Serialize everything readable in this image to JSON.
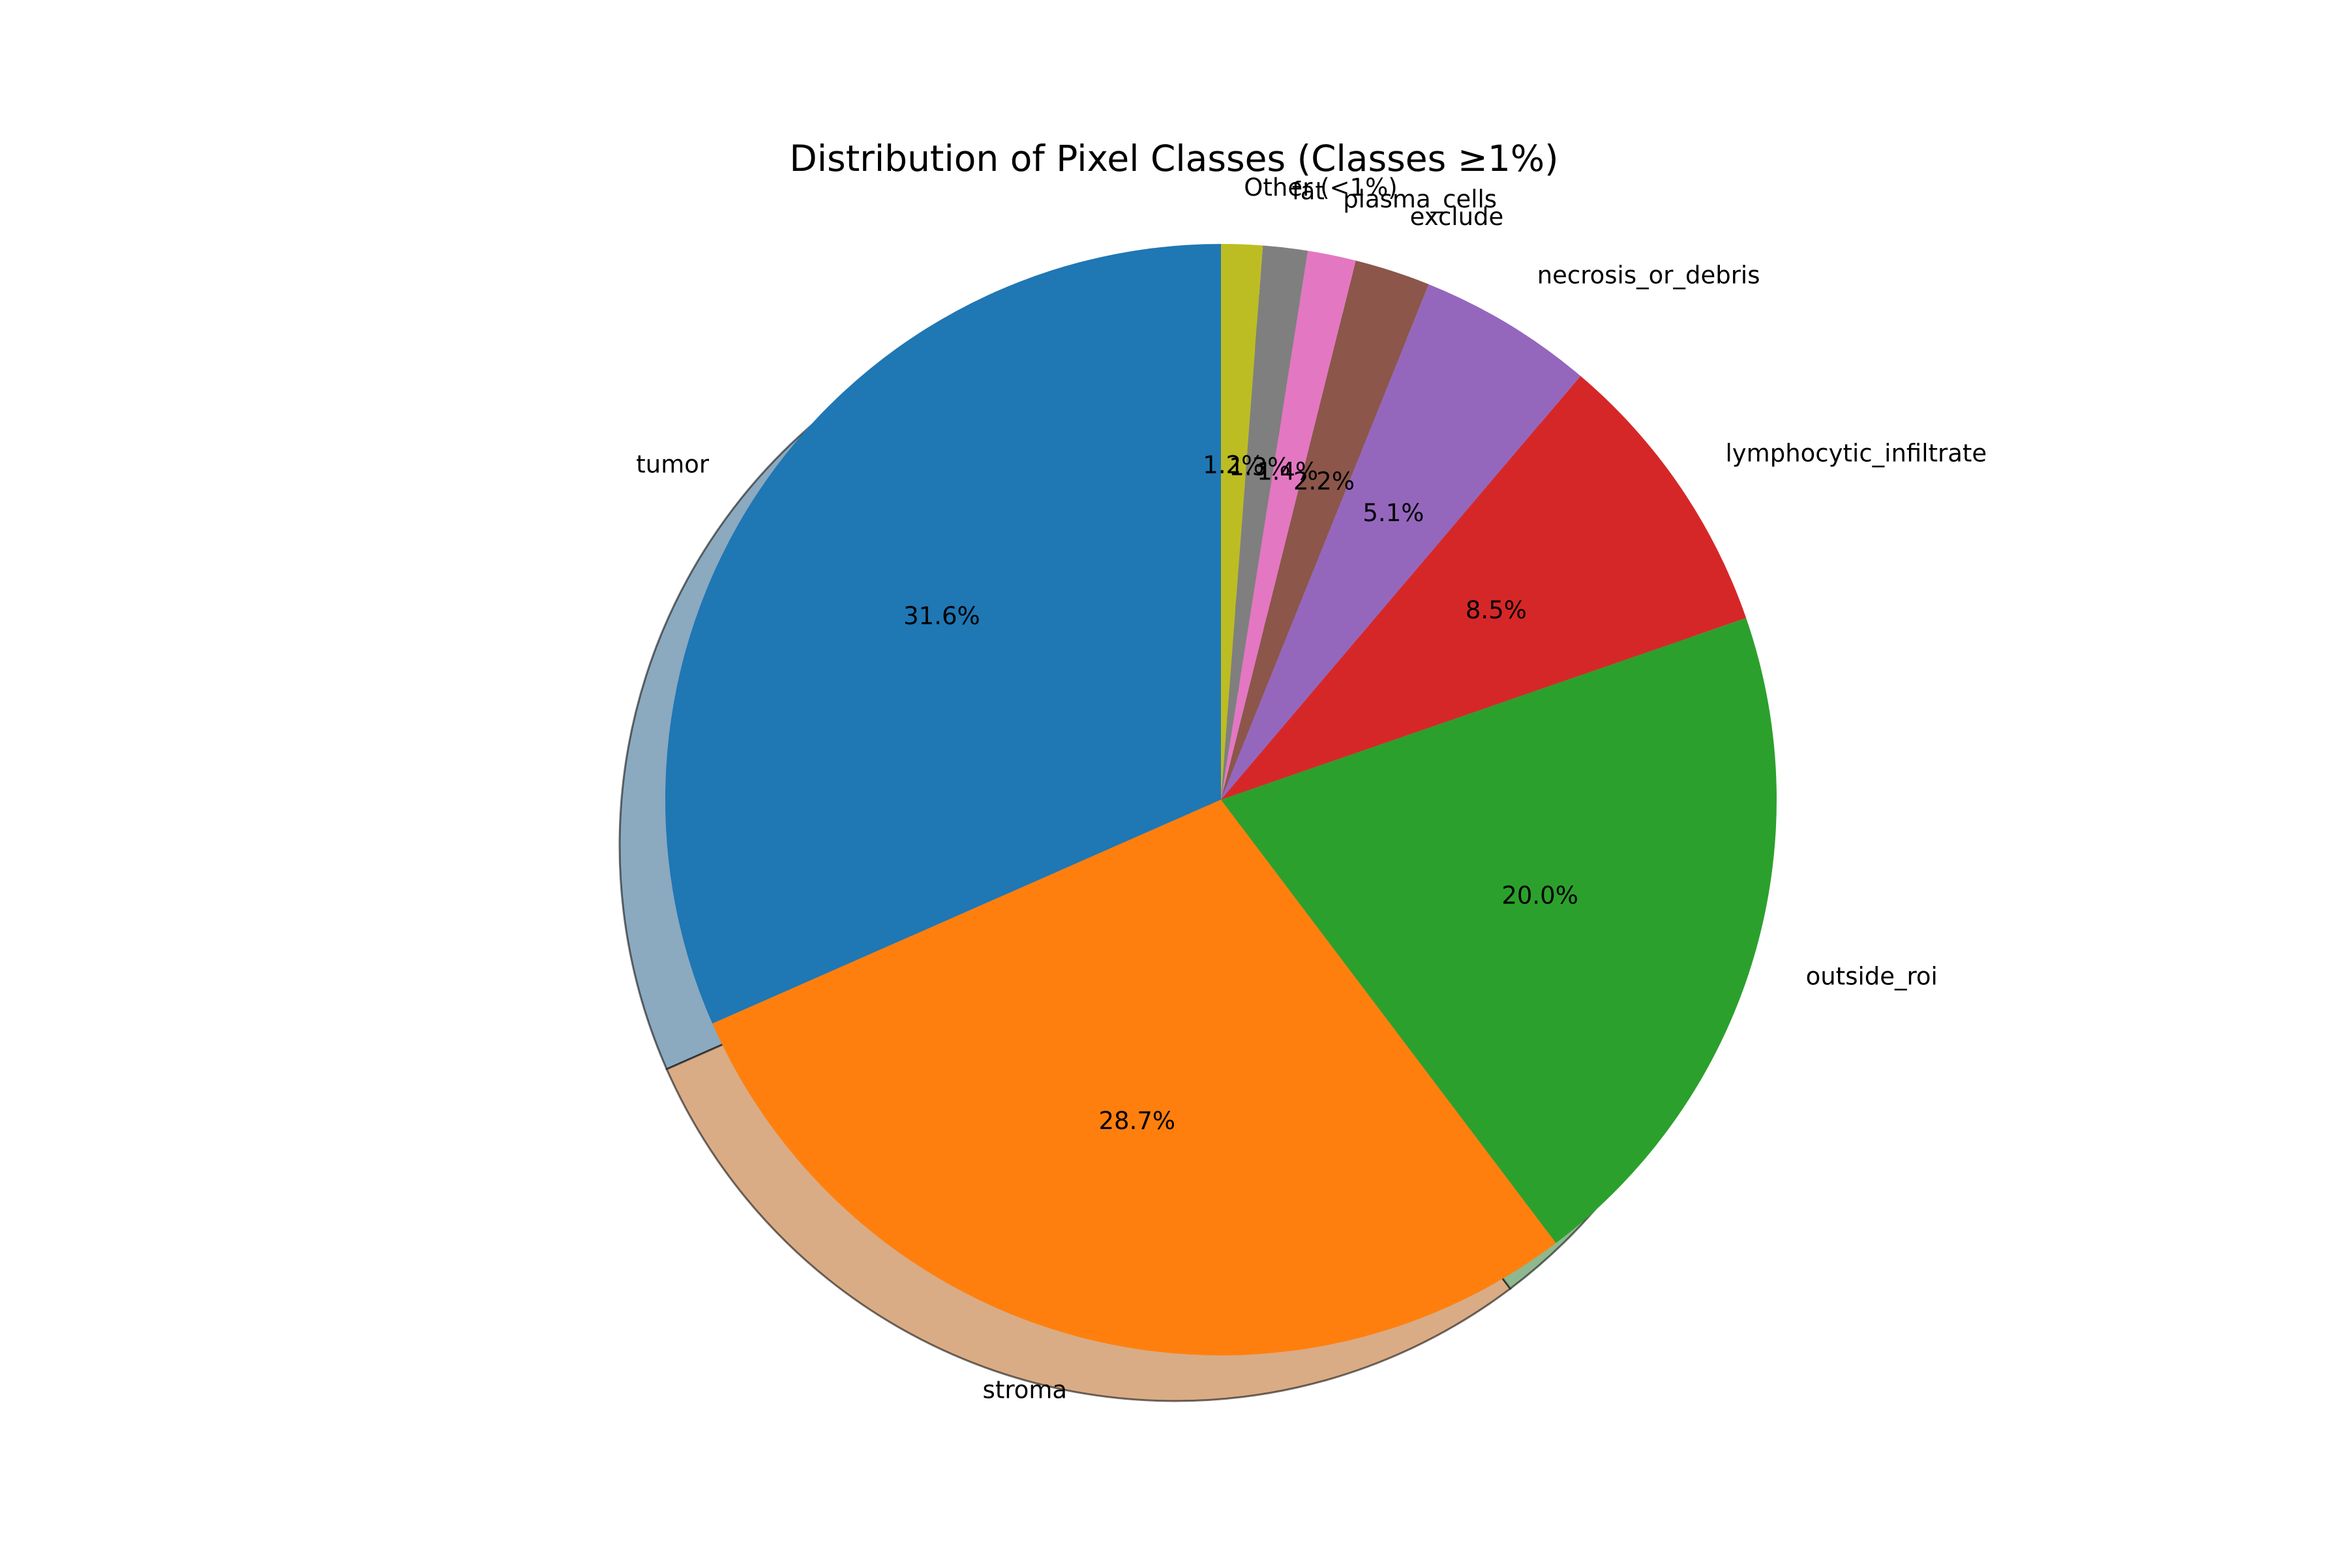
{
  "chart_data": {
    "type": "pie",
    "title": "Distribution of Pixel Classes (Classes ≥1%)",
    "start_angle_deg": 90,
    "direction": "counterclockwise",
    "shadow": true,
    "slices": [
      {
        "label": "tumor",
        "value": 31.6,
        "pct_label": "31.6%",
        "color": "#1f77b4"
      },
      {
        "label": "stroma",
        "value": 28.7,
        "pct_label": "28.7%",
        "color": "#ff7f0e"
      },
      {
        "label": "outside_roi",
        "value": 20.0,
        "pct_label": "20.0%",
        "color": "#2ca02c"
      },
      {
        "label": "lymphocytic_infiltrate",
        "value": 8.5,
        "pct_label": "8.5%",
        "color": "#d62728"
      },
      {
        "label": "necrosis_or_debris",
        "value": 5.1,
        "pct_label": "5.1%",
        "color": "#9467bd"
      },
      {
        "label": "exclude",
        "value": 2.2,
        "pct_label": "2.2%",
        "color": "#8c564b"
      },
      {
        "label": "plasma_cells",
        "value": 1.4,
        "pct_label": "1.4%",
        "color": "#e377c2"
      },
      {
        "label": "fat",
        "value": 1.3,
        "pct_label": "1.3%",
        "color": "#7f7f7f"
      },
      {
        "label": "Other (<1%)",
        "value": 1.2,
        "pct_label": "1.2%",
        "color": "#bcbd22"
      }
    ]
  }
}
